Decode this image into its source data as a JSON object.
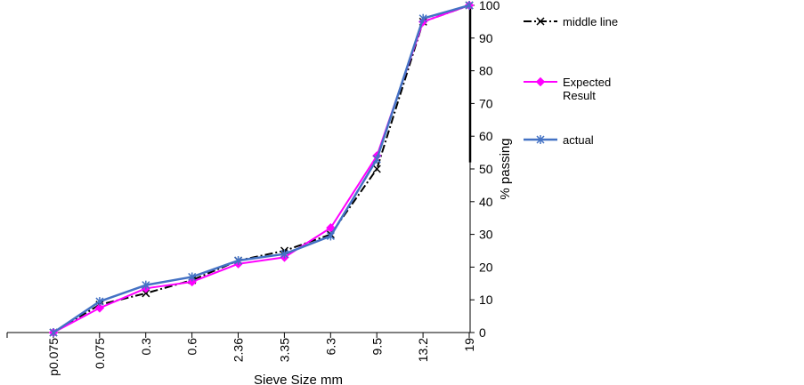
{
  "chart_data": {
    "type": "line",
    "categories": [
      "p0.075",
      "0.075",
      "0.3",
      "0.6",
      "2.36",
      "3.35",
      "6.3",
      "9.5",
      "13.2",
      "19"
    ],
    "xlabel": "Sieve Size mm",
    "ylabel": "% passing",
    "ylim": [
      0,
      100
    ],
    "yticks": [
      0,
      10,
      20,
      30,
      40,
      50,
      60,
      70,
      80,
      90,
      100
    ],
    "y_axis_side": "right",
    "grid": false,
    "legend_position": "right",
    "series": [
      {
        "name": "middle line",
        "color": "#000000",
        "marker": "cross",
        "values": [
          0,
          8.5,
          12,
          16,
          22,
          25,
          30,
          50,
          95,
          100
        ]
      },
      {
        "name": "Expected Result",
        "color": "#ff00ff",
        "marker": "diamond",
        "values": [
          0,
          7.5,
          13.5,
          15.5,
          21,
          23,
          32,
          54,
          95,
          100
        ]
      },
      {
        "name": "actual",
        "color": "#4472c4",
        "marker": "asterisk",
        "values": [
          0,
          9.5,
          14.5,
          17,
          22,
          24,
          29.5,
          53,
          96,
          100
        ]
      }
    ]
  }
}
